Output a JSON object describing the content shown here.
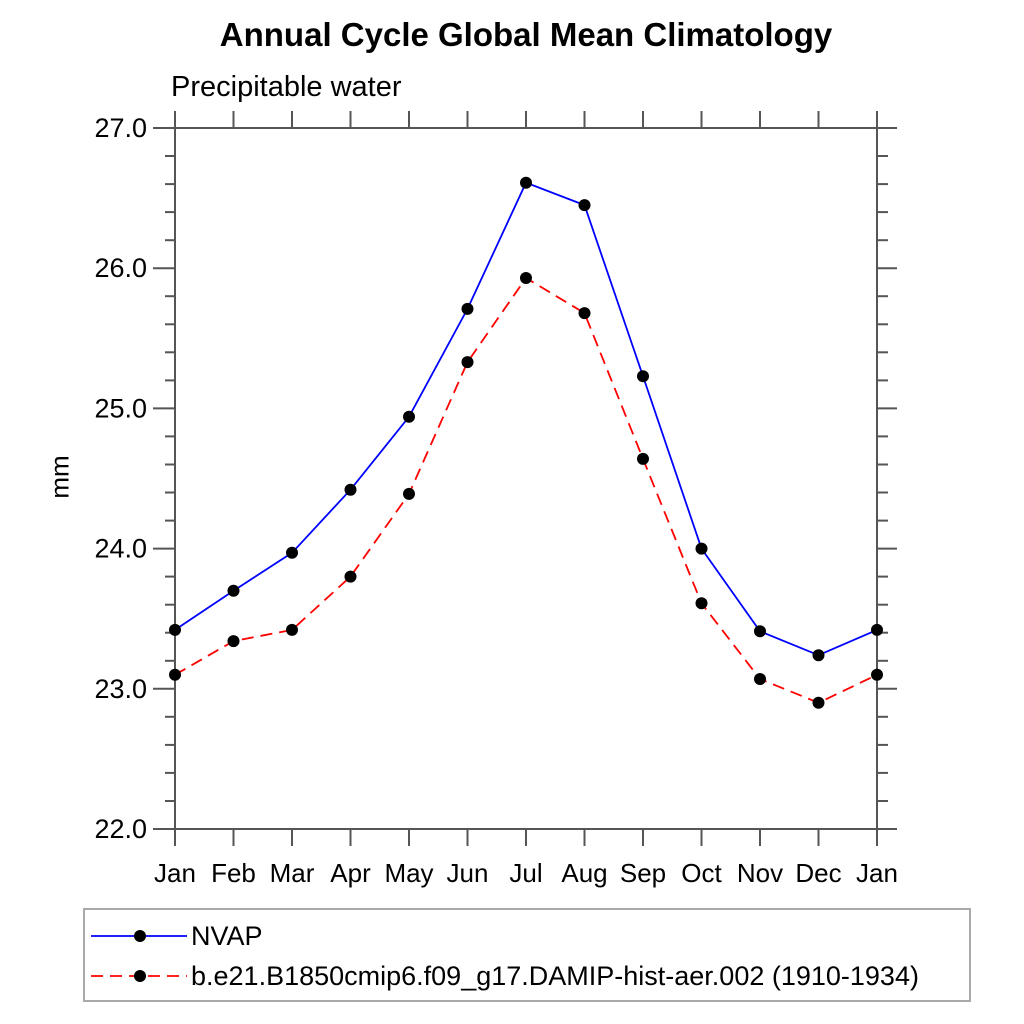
{
  "chart_data": {
    "type": "line",
    "title": "Annual Cycle Global Mean Climatology",
    "subtitle": "Precipitable water",
    "xlabel": "",
    "ylabel": "mm",
    "categories": [
      "Jan",
      "Feb",
      "Mar",
      "Apr",
      "May",
      "Jun",
      "Jul",
      "Aug",
      "Sep",
      "Oct",
      "Nov",
      "Dec",
      "Jan"
    ],
    "ylim": [
      22.0,
      27.0
    ],
    "ytick_interval": 1.0,
    "yminor_interval": 0.2,
    "ytick_labels": [
      "22.0",
      "23.0",
      "24.0",
      "25.0",
      "26.0",
      "27.0"
    ],
    "grid": false,
    "legend_position": "bottom-left",
    "axis_color": "#555555",
    "text_color": "#000000",
    "marker_radius": 6,
    "series": [
      {
        "name": "NVAP",
        "color": "#0000ff",
        "line_style": "solid",
        "marker": "filled-circle",
        "marker_color": "#000000",
        "values": [
          23.42,
          23.7,
          23.97,
          24.42,
          24.94,
          25.71,
          26.61,
          26.45,
          25.23,
          24.0,
          23.41,
          23.24,
          23.42
        ]
      },
      {
        "name": "b.e21.B1850cmip6.f09_g17.DAMIP-hist-aer.002 (1910-1934)",
        "color": "#ff0000",
        "line_style": "dashed",
        "marker": "filled-circle",
        "marker_color": "#000000",
        "values": [
          23.1,
          23.34,
          23.42,
          23.8,
          24.39,
          25.33,
          25.93,
          25.68,
          24.64,
          23.61,
          23.07,
          22.9,
          23.1
        ]
      }
    ]
  }
}
